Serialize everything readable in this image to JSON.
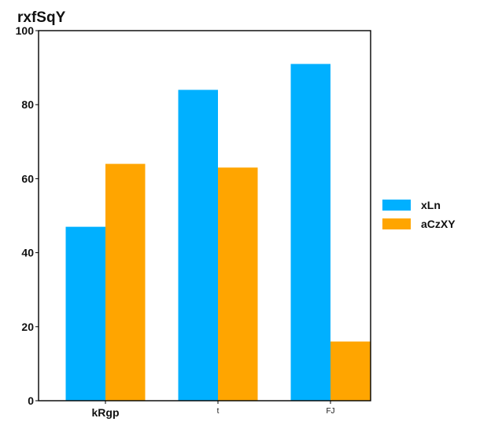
{
  "chart_data": {
    "type": "bar",
    "title": "rxfSqY",
    "categories": [
      "kRgp",
      "t",
      "FJ"
    ],
    "series": [
      {
        "name": "xLn",
        "values": [
          47,
          84,
          91
        ],
        "color": "#00b0ff"
      },
      {
        "name": "aCzXY",
        "values": [
          64,
          63,
          16
        ],
        "color": "#ffa500"
      }
    ],
    "ylim": [
      0,
      100
    ],
    "yticks": [
      "0",
      "20",
      "40",
      "60",
      "80",
      "100"
    ],
    "grid": false,
    "legend_position": "right"
  }
}
